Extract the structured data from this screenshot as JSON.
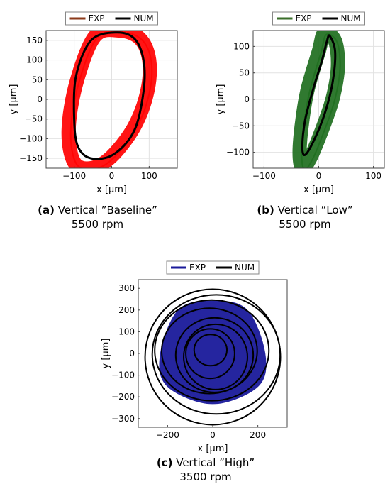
{
  "figure": {
    "panels": [
      {
        "id": "a",
        "caption_label": "(a)",
        "caption_title": "Vertical ”Baseline”",
        "caption_speed": "5500 rpm"
      },
      {
        "id": "b",
        "caption_label": "(b)",
        "caption_title": "Vertical ”Low”",
        "caption_speed": "5500 rpm"
      },
      {
        "id": "c",
        "caption_label": "(c)",
        "caption_title": "Vertical ”High”",
        "caption_speed": "3500 rpm"
      }
    ]
  },
  "chart_data": [
    {
      "type": "line",
      "xlabel": "x [μm]",
      "ylabel": "y [μm]",
      "xlim": [
        -175,
        175
      ],
      "ylim": [
        -175,
        175
      ],
      "xticks": [
        -100,
        0,
        100
      ],
      "yticks": [
        -150,
        -100,
        -50,
        0,
        50,
        100,
        150
      ],
      "grid": true,
      "legend_placement": "top",
      "series": [
        {
          "name": "EXP",
          "color": "#ff0000",
          "legend_color": "#8b3a1a",
          "kind": "orbit-band",
          "x": [
            -45,
            20,
            75,
            100,
            95,
            60,
            0,
            -55,
            -100,
            -115,
            -95,
            -45
          ],
          "y": [
            160,
            175,
            155,
            100,
            20,
            -70,
            -145,
            -175,
            -160,
            -80,
            40,
            160
          ]
        },
        {
          "name": "NUM",
          "color": "#000000",
          "legend_color": "#000000",
          "kind": "orbit-line",
          "x": [
            -55,
            10,
            60,
            85,
            85,
            60,
            5,
            -55,
            -90,
            -100,
            -95,
            -55
          ],
          "y": [
            150,
            170,
            155,
            100,
            20,
            -80,
            -140,
            -150,
            -120,
            -50,
            60,
            150
          ]
        }
      ]
    },
    {
      "type": "line",
      "xlabel": "x [μm]",
      "ylabel": "y [μm]",
      "xlim": [
        -120,
        120
      ],
      "ylim": [
        -130,
        130
      ],
      "xticks": [
        -100,
        0,
        100
      ],
      "yticks": [
        -100,
        -50,
        0,
        50,
        100
      ],
      "grid": true,
      "legend_placement": "top",
      "series": [
        {
          "name": "EXP",
          "color": "#1e6e1e",
          "legend_color": "#3a6e2a",
          "kind": "orbit-band",
          "x": [
            10,
            30,
            35,
            25,
            5,
            -15,
            -30,
            -35,
            -30,
            -20,
            0,
            10
          ],
          "y": [
            125,
            110,
            60,
            0,
            -60,
            -110,
            -130,
            -100,
            -40,
            20,
            90,
            125
          ]
        },
        {
          "name": "NUM",
          "color": "#000000",
          "legend_color": "#000000",
          "kind": "orbit-line",
          "x": [
            20,
            30,
            25,
            10,
            -10,
            -25,
            -30,
            -25,
            -10,
            5,
            15,
            20
          ],
          "y": [
            120,
            90,
            30,
            -30,
            -80,
            -105,
            -90,
            -40,
            20,
            70,
            110,
            120
          ]
        }
      ]
    },
    {
      "type": "line",
      "xlabel": "x [μm]",
      "ylabel": "y [μm]",
      "xlim": [
        -330,
        330
      ],
      "ylim": [
        -340,
        340
      ],
      "xticks": [
        -200,
        0,
        200
      ],
      "yticks": [
        -300,
        -200,
        -100,
        0,
        100,
        200,
        300
      ],
      "grid": false,
      "legend_placement": "top",
      "series": [
        {
          "name": "EXP",
          "color": "#1a1a9a",
          "legend_color": "#1a1a9a",
          "kind": "disk",
          "x": [
            0,
            150,
            230,
            200,
            0,
            -200,
            -230,
            -150,
            0
          ],
          "y": [
            240,
            200,
            0,
            -150,
            -230,
            -150,
            0,
            200,
            240
          ]
        },
        {
          "name": "NUM",
          "color": "#000000",
          "legend_color": "#000000",
          "kind": "scribble",
          "radii_um": [
            300,
            270,
            240,
            210,
            180,
            150,
            110,
            70
          ]
        }
      ]
    }
  ]
}
